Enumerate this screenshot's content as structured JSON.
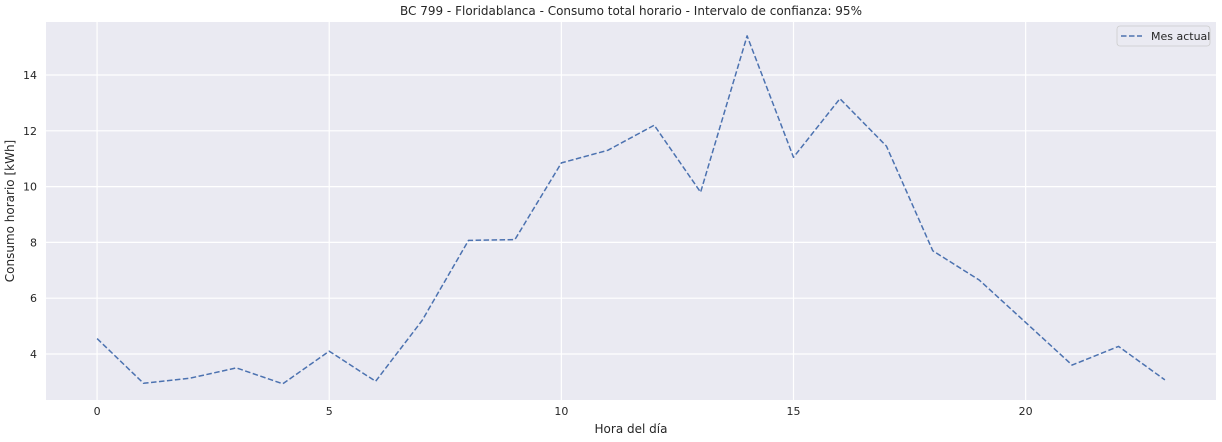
{
  "chart_data": {
    "type": "line",
    "title": "BC 799 - Floridablanca - Consumo total horario - Intervalo de confianza: 95%",
    "xlabel": "Hora del día",
    "ylabel": "Consumo horario [kWh]",
    "xlim": [
      -1.1,
      24.1
    ],
    "ylim": [
      2.35,
      15.9
    ],
    "xticks": [
      0,
      5,
      10,
      15,
      20
    ],
    "yticks": [
      4,
      6,
      8,
      10,
      12,
      14
    ],
    "x": [
      0,
      1,
      2,
      3,
      4,
      5,
      6,
      7,
      8,
      9,
      10,
      11,
      12,
      13,
      14,
      15,
      16,
      17,
      18,
      19,
      20,
      21,
      22,
      23
    ],
    "series": [
      {
        "name": "Mes actual",
        "values": [
          4.55,
          2.95,
          3.13,
          3.5,
          2.93,
          4.1,
          3.02,
          5.2,
          8.07,
          8.1,
          10.85,
          11.3,
          12.2,
          9.8,
          15.4,
          11.05,
          13.15,
          11.45,
          7.7,
          6.65,
          5.13,
          3.6,
          4.27,
          3.07
        ],
        "color": "#4c72b0",
        "style": "dashed"
      }
    ],
    "grid": true,
    "background": "#eaeaf2",
    "legend_position": "top-right"
  }
}
